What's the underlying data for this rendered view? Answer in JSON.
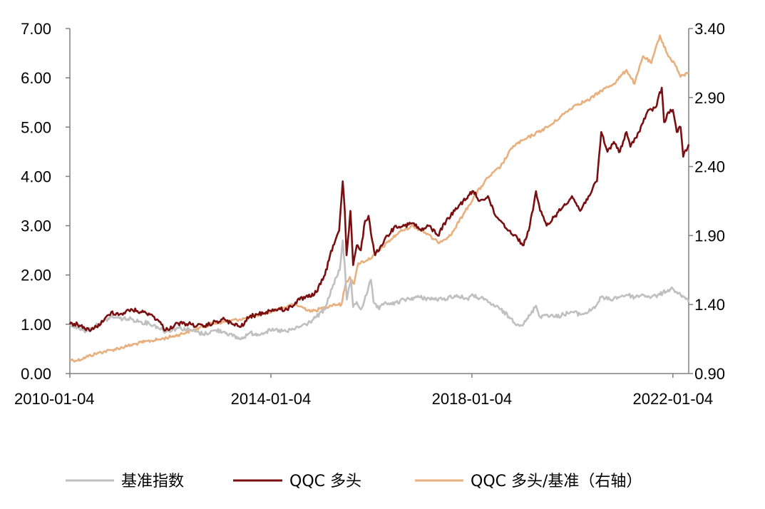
{
  "chart_data": {
    "type": "line",
    "grid": false,
    "legend_position": "bottom",
    "x": {
      "type": "date",
      "range": [
        "2010-01-04",
        "2022-04-29"
      ],
      "tick_labels": [
        "2010-01-04",
        "2014-01-04",
        "2018-01-04",
        "2022-01-04"
      ]
    },
    "y_left": {
      "range": [
        0,
        7
      ],
      "tick_labels": [
        "0.00",
        "1.00",
        "2.00",
        "3.00",
        "4.00",
        "5.00",
        "6.00",
        "7.00"
      ]
    },
    "y_right": {
      "range": [
        0.9,
        3.4
      ],
      "tick_labels": [
        "0.90",
        "1.40",
        "1.90",
        "2.40",
        "2.90",
        "3.40"
      ]
    },
    "series": [
      {
        "name": "基准指数",
        "axis": "left",
        "color": "#c0c0c0",
        "points": [
          [
            "2010-01-04",
            1.0
          ],
          [
            "2010-03-01",
            0.93
          ],
          [
            "2010-05-01",
            0.86
          ],
          [
            "2010-07-01",
            0.95
          ],
          [
            "2010-09-01",
            1.05
          ],
          [
            "2010-11-01",
            1.15
          ],
          [
            "2011-01-01",
            1.12
          ],
          [
            "2011-04-01",
            1.1
          ],
          [
            "2011-06-01",
            1.05
          ],
          [
            "2011-08-01",
            1.02
          ],
          [
            "2011-10-01",
            0.95
          ],
          [
            "2011-12-01",
            0.85
          ],
          [
            "2012-03-01",
            0.93
          ],
          [
            "2012-06-01",
            0.88
          ],
          [
            "2012-09-01",
            0.8
          ],
          [
            "2012-12-01",
            0.88
          ],
          [
            "2013-02-01",
            0.85
          ],
          [
            "2013-04-01",
            0.76
          ],
          [
            "2013-06-01",
            0.7
          ],
          [
            "2013-08-01",
            0.82
          ],
          [
            "2013-10-01",
            0.8
          ],
          [
            "2013-12-01",
            0.85
          ],
          [
            "2014-02-01",
            0.88
          ],
          [
            "2014-05-01",
            0.85
          ],
          [
            "2014-08-01",
            0.95
          ],
          [
            "2014-10-01",
            1.02
          ],
          [
            "2014-12-01",
            1.15
          ],
          [
            "2015-02-01",
            1.3
          ],
          [
            "2015-04-01",
            1.8
          ],
          [
            "2015-05-20",
            2.1
          ],
          [
            "2015-06-10",
            2.7
          ],
          [
            "2015-06-25",
            2.2
          ],
          [
            "2015-07-10",
            1.5
          ],
          [
            "2015-08-10",
            1.9
          ],
          [
            "2015-08-25",
            1.35
          ],
          [
            "2015-09-20",
            1.45
          ],
          [
            "2015-10-20",
            1.3
          ],
          [
            "2015-12-01",
            1.6
          ],
          [
            "2016-01-01",
            1.9
          ],
          [
            "2016-01-20",
            1.45
          ],
          [
            "2016-03-01",
            1.3
          ],
          [
            "2016-04-15",
            1.45
          ],
          [
            "2016-06-01",
            1.4
          ],
          [
            "2016-09-01",
            1.5
          ],
          [
            "2016-12-01",
            1.55
          ],
          [
            "2017-03-01",
            1.52
          ],
          [
            "2017-06-01",
            1.5
          ],
          [
            "2017-09-01",
            1.58
          ],
          [
            "2017-12-01",
            1.52
          ],
          [
            "2018-01-15",
            1.58
          ],
          [
            "2018-04-01",
            1.5
          ],
          [
            "2018-06-01",
            1.4
          ],
          [
            "2018-08-01",
            1.3
          ],
          [
            "2018-10-01",
            1.15
          ],
          [
            "2018-12-01",
            1.0
          ],
          [
            "2019-01-15",
            1.0
          ],
          [
            "2019-03-01",
            1.18
          ],
          [
            "2019-04-15",
            1.38
          ],
          [
            "2019-05-15",
            1.15
          ],
          [
            "2019-07-01",
            1.2
          ],
          [
            "2019-09-01",
            1.15
          ],
          [
            "2019-11-01",
            1.2
          ],
          [
            "2020-01-01",
            1.25
          ],
          [
            "2020-03-01",
            1.2
          ],
          [
            "2020-05-01",
            1.25
          ],
          [
            "2020-07-01",
            1.4
          ],
          [
            "2020-08-01",
            1.55
          ],
          [
            "2020-10-01",
            1.5
          ],
          [
            "2020-12-01",
            1.55
          ],
          [
            "2021-02-01",
            1.6
          ],
          [
            "2021-04-01",
            1.55
          ],
          [
            "2021-06-01",
            1.6
          ],
          [
            "2021-08-01",
            1.55
          ],
          [
            "2021-10-01",
            1.6
          ],
          [
            "2021-12-01",
            1.7
          ],
          [
            "2022-01-04",
            1.72
          ],
          [
            "2022-02-01",
            1.65
          ],
          [
            "2022-03-01",
            1.6
          ],
          [
            "2022-04-01",
            1.55
          ],
          [
            "2022-04-29",
            1.45
          ]
        ]
      },
      {
        "name": "QQC 多头",
        "axis": "left",
        "color": "#7a0f12",
        "points": [
          [
            "2010-01-04",
            1.0
          ],
          [
            "2010-03-01",
            1.0
          ],
          [
            "2010-05-01",
            0.88
          ],
          [
            "2010-07-01",
            0.92
          ],
          [
            "2010-09-01",
            1.05
          ],
          [
            "2010-11-01",
            1.25
          ],
          [
            "2011-01-01",
            1.2
          ],
          [
            "2011-04-01",
            1.3
          ],
          [
            "2011-06-01",
            1.25
          ],
          [
            "2011-08-01",
            1.22
          ],
          [
            "2011-10-01",
            1.1
          ],
          [
            "2011-12-01",
            0.88
          ],
          [
            "2012-03-01",
            1.02
          ],
          [
            "2012-06-01",
            1.0
          ],
          [
            "2012-09-01",
            0.95
          ],
          [
            "2012-12-01",
            1.05
          ],
          [
            "2013-02-01",
            1.1
          ],
          [
            "2013-04-01",
            1.0
          ],
          [
            "2013-06-01",
            0.95
          ],
          [
            "2013-08-01",
            1.15
          ],
          [
            "2013-10-01",
            1.2
          ],
          [
            "2013-12-01",
            1.25
          ],
          [
            "2014-02-01",
            1.3
          ],
          [
            "2014-05-01",
            1.3
          ],
          [
            "2014-08-01",
            1.5
          ],
          [
            "2014-10-01",
            1.55
          ],
          [
            "2014-12-01",
            1.65
          ],
          [
            "2015-02-01",
            2.0
          ],
          [
            "2015-04-01",
            2.6
          ],
          [
            "2015-05-15",
            2.9
          ],
          [
            "2015-06-10",
            3.9
          ],
          [
            "2015-06-25",
            3.3
          ],
          [
            "2015-07-08",
            2.4
          ],
          [
            "2015-07-25",
            2.9
          ],
          [
            "2015-08-05",
            3.3
          ],
          [
            "2015-08-25",
            2.2
          ],
          [
            "2015-09-20",
            2.6
          ],
          [
            "2015-10-20",
            2.5
          ],
          [
            "2015-11-20",
            3.1
          ],
          [
            "2015-12-15",
            3.2
          ],
          [
            "2016-01-10",
            2.7
          ],
          [
            "2016-02-01",
            2.4
          ],
          [
            "2016-03-15",
            2.6
          ],
          [
            "2016-05-01",
            2.8
          ],
          [
            "2016-07-01",
            3.0
          ],
          [
            "2016-09-01",
            3.0
          ],
          [
            "2016-11-01",
            3.05
          ],
          [
            "2017-01-01",
            2.9
          ],
          [
            "2017-03-01",
            3.0
          ],
          [
            "2017-05-01",
            2.8
          ],
          [
            "2017-07-01",
            3.1
          ],
          [
            "2017-09-01",
            3.3
          ],
          [
            "2017-11-01",
            3.5
          ],
          [
            "2018-01-15",
            3.7
          ],
          [
            "2018-03-01",
            3.5
          ],
          [
            "2018-05-01",
            3.6
          ],
          [
            "2018-06-15",
            3.25
          ],
          [
            "2018-08-01",
            3.1
          ],
          [
            "2018-10-01",
            2.9
          ],
          [
            "2018-12-01",
            2.75
          ],
          [
            "2019-01-15",
            2.6
          ],
          [
            "2019-03-01",
            3.0
          ],
          [
            "2019-04-15",
            3.7
          ],
          [
            "2019-05-15",
            3.3
          ],
          [
            "2019-07-01",
            3.0
          ],
          [
            "2019-09-01",
            3.2
          ],
          [
            "2019-11-01",
            3.4
          ],
          [
            "2020-01-01",
            3.6
          ],
          [
            "2020-03-01",
            3.3
          ],
          [
            "2020-05-01",
            3.6
          ],
          [
            "2020-07-01",
            3.9
          ],
          [
            "2020-08-01",
            4.9
          ],
          [
            "2020-09-15",
            4.5
          ],
          [
            "2020-11-01",
            4.7
          ],
          [
            "2020-12-15",
            4.5
          ],
          [
            "2021-02-01",
            4.9
          ],
          [
            "2021-03-01",
            4.6
          ],
          [
            "2021-05-01",
            4.9
          ],
          [
            "2021-07-01",
            5.3
          ],
          [
            "2021-09-01",
            5.4
          ],
          [
            "2021-10-15",
            5.8
          ],
          [
            "2021-11-01",
            5.1
          ],
          [
            "2021-12-01",
            5.3
          ],
          [
            "2022-01-04",
            5.35
          ],
          [
            "2022-02-01",
            4.9
          ],
          [
            "2022-03-01",
            5.0
          ],
          [
            "2022-03-20",
            4.4
          ],
          [
            "2022-04-29",
            4.65
          ]
        ]
      },
      {
        "name": "QQC 多头/基准（右轴）",
        "axis": "right",
        "color": "#e8b07e",
        "points": [
          [
            "2010-01-04",
            1.0
          ],
          [
            "2010-03-01",
            0.995
          ],
          [
            "2010-05-01",
            1.02
          ],
          [
            "2010-08-01",
            1.05
          ],
          [
            "2010-11-01",
            1.07
          ],
          [
            "2011-03-01",
            1.1
          ],
          [
            "2011-07-01",
            1.13
          ],
          [
            "2011-11-01",
            1.15
          ],
          [
            "2012-03-01",
            1.18
          ],
          [
            "2012-07-01",
            1.22
          ],
          [
            "2012-11-01",
            1.26
          ],
          [
            "2013-03-01",
            1.28
          ],
          [
            "2013-07-01",
            1.3
          ],
          [
            "2013-11-01",
            1.33
          ],
          [
            "2014-03-01",
            1.37
          ],
          [
            "2014-07-01",
            1.4
          ],
          [
            "2014-11-01",
            1.35
          ],
          [
            "2015-02-01",
            1.38
          ],
          [
            "2015-04-01",
            1.4
          ],
          [
            "2015-06-01",
            1.4
          ],
          [
            "2015-07-01",
            1.55
          ],
          [
            "2015-08-01",
            1.6
          ],
          [
            "2015-09-01",
            1.55
          ],
          [
            "2015-10-01",
            1.7
          ],
          [
            "2015-12-01",
            1.72
          ],
          [
            "2016-02-01",
            1.76
          ],
          [
            "2016-05-01",
            1.85
          ],
          [
            "2016-08-01",
            1.93
          ],
          [
            "2016-11-01",
            1.97
          ],
          [
            "2017-02-01",
            1.92
          ],
          [
            "2017-05-01",
            1.85
          ],
          [
            "2017-08-01",
            1.9
          ],
          [
            "2017-11-01",
            2.05
          ],
          [
            "2018-02-01",
            2.2
          ],
          [
            "2018-05-01",
            2.32
          ],
          [
            "2018-08-01",
            2.4
          ],
          [
            "2018-11-01",
            2.55
          ],
          [
            "2019-02-01",
            2.6
          ],
          [
            "2019-05-01",
            2.65
          ],
          [
            "2019-08-01",
            2.7
          ],
          [
            "2019-11-01",
            2.78
          ],
          [
            "2020-02-01",
            2.85
          ],
          [
            "2020-05-01",
            2.88
          ],
          [
            "2020-08-01",
            2.95
          ],
          [
            "2020-11-01",
            3.0
          ],
          [
            "2021-02-01",
            3.1
          ],
          [
            "2021-04-01",
            3.0
          ],
          [
            "2021-06-01",
            3.2
          ],
          [
            "2021-08-01",
            3.15
          ],
          [
            "2021-10-01",
            3.35
          ],
          [
            "2021-12-01",
            3.2
          ],
          [
            "2022-01-15",
            3.15
          ],
          [
            "2022-03-01",
            3.05
          ],
          [
            "2022-04-29",
            3.08
          ]
        ]
      }
    ]
  }
}
